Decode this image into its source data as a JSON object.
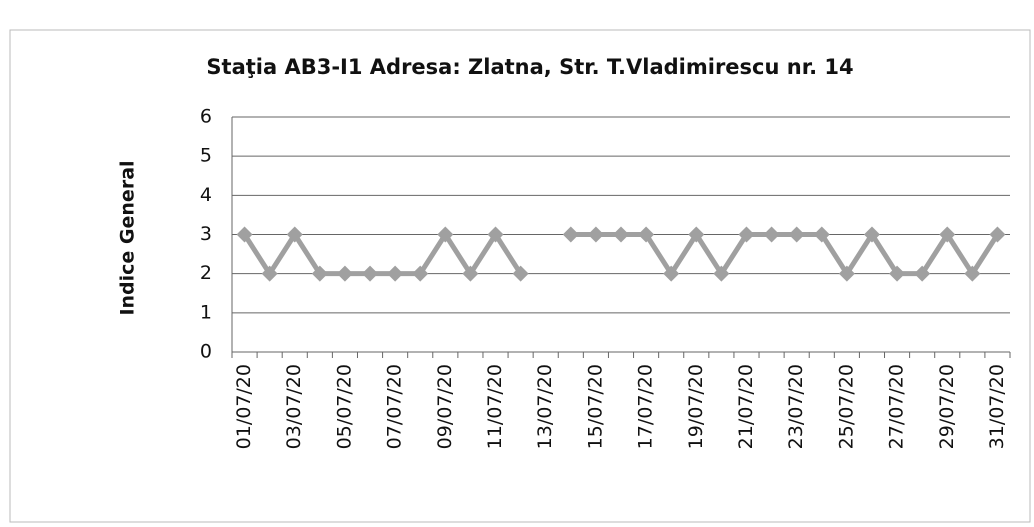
{
  "chart_data": {
    "type": "line",
    "title": "Staţia AB3-I1 Adresa: Zlatna, Str. T.Vladimirescu nr. 14",
    "y_label": "Indice General",
    "categories": [
      "01/07/20",
      null,
      "03/07/20",
      null,
      "05/07/20",
      null,
      "07/07/20",
      null,
      "09/07/20",
      null,
      "11/07/20",
      null,
      "13/07/20",
      null,
      "15/07/20",
      null,
      "17/07/20",
      null,
      "19/07/20",
      null,
      "21/07/20",
      null,
      "23/07/20",
      null,
      "25/07/20",
      null,
      "27/07/20",
      null,
      "29/07/20",
      null,
      "31/07/20"
    ],
    "series": [
      {
        "name": "Indice General",
        "color": "#a0a0a0",
        "values": [
          3,
          2,
          3,
          2,
          2,
          2,
          2,
          2,
          3,
          2,
          3,
          2,
          null,
          3,
          3,
          3,
          3,
          2,
          3,
          2,
          3,
          3,
          3,
          3,
          2,
          3,
          2,
          2,
          3,
          2,
          3
        ]
      }
    ],
    "ylim": [
      0,
      6
    ],
    "yticks": [
      0,
      1,
      2,
      3,
      4,
      5,
      6
    ],
    "grid": true
  }
}
